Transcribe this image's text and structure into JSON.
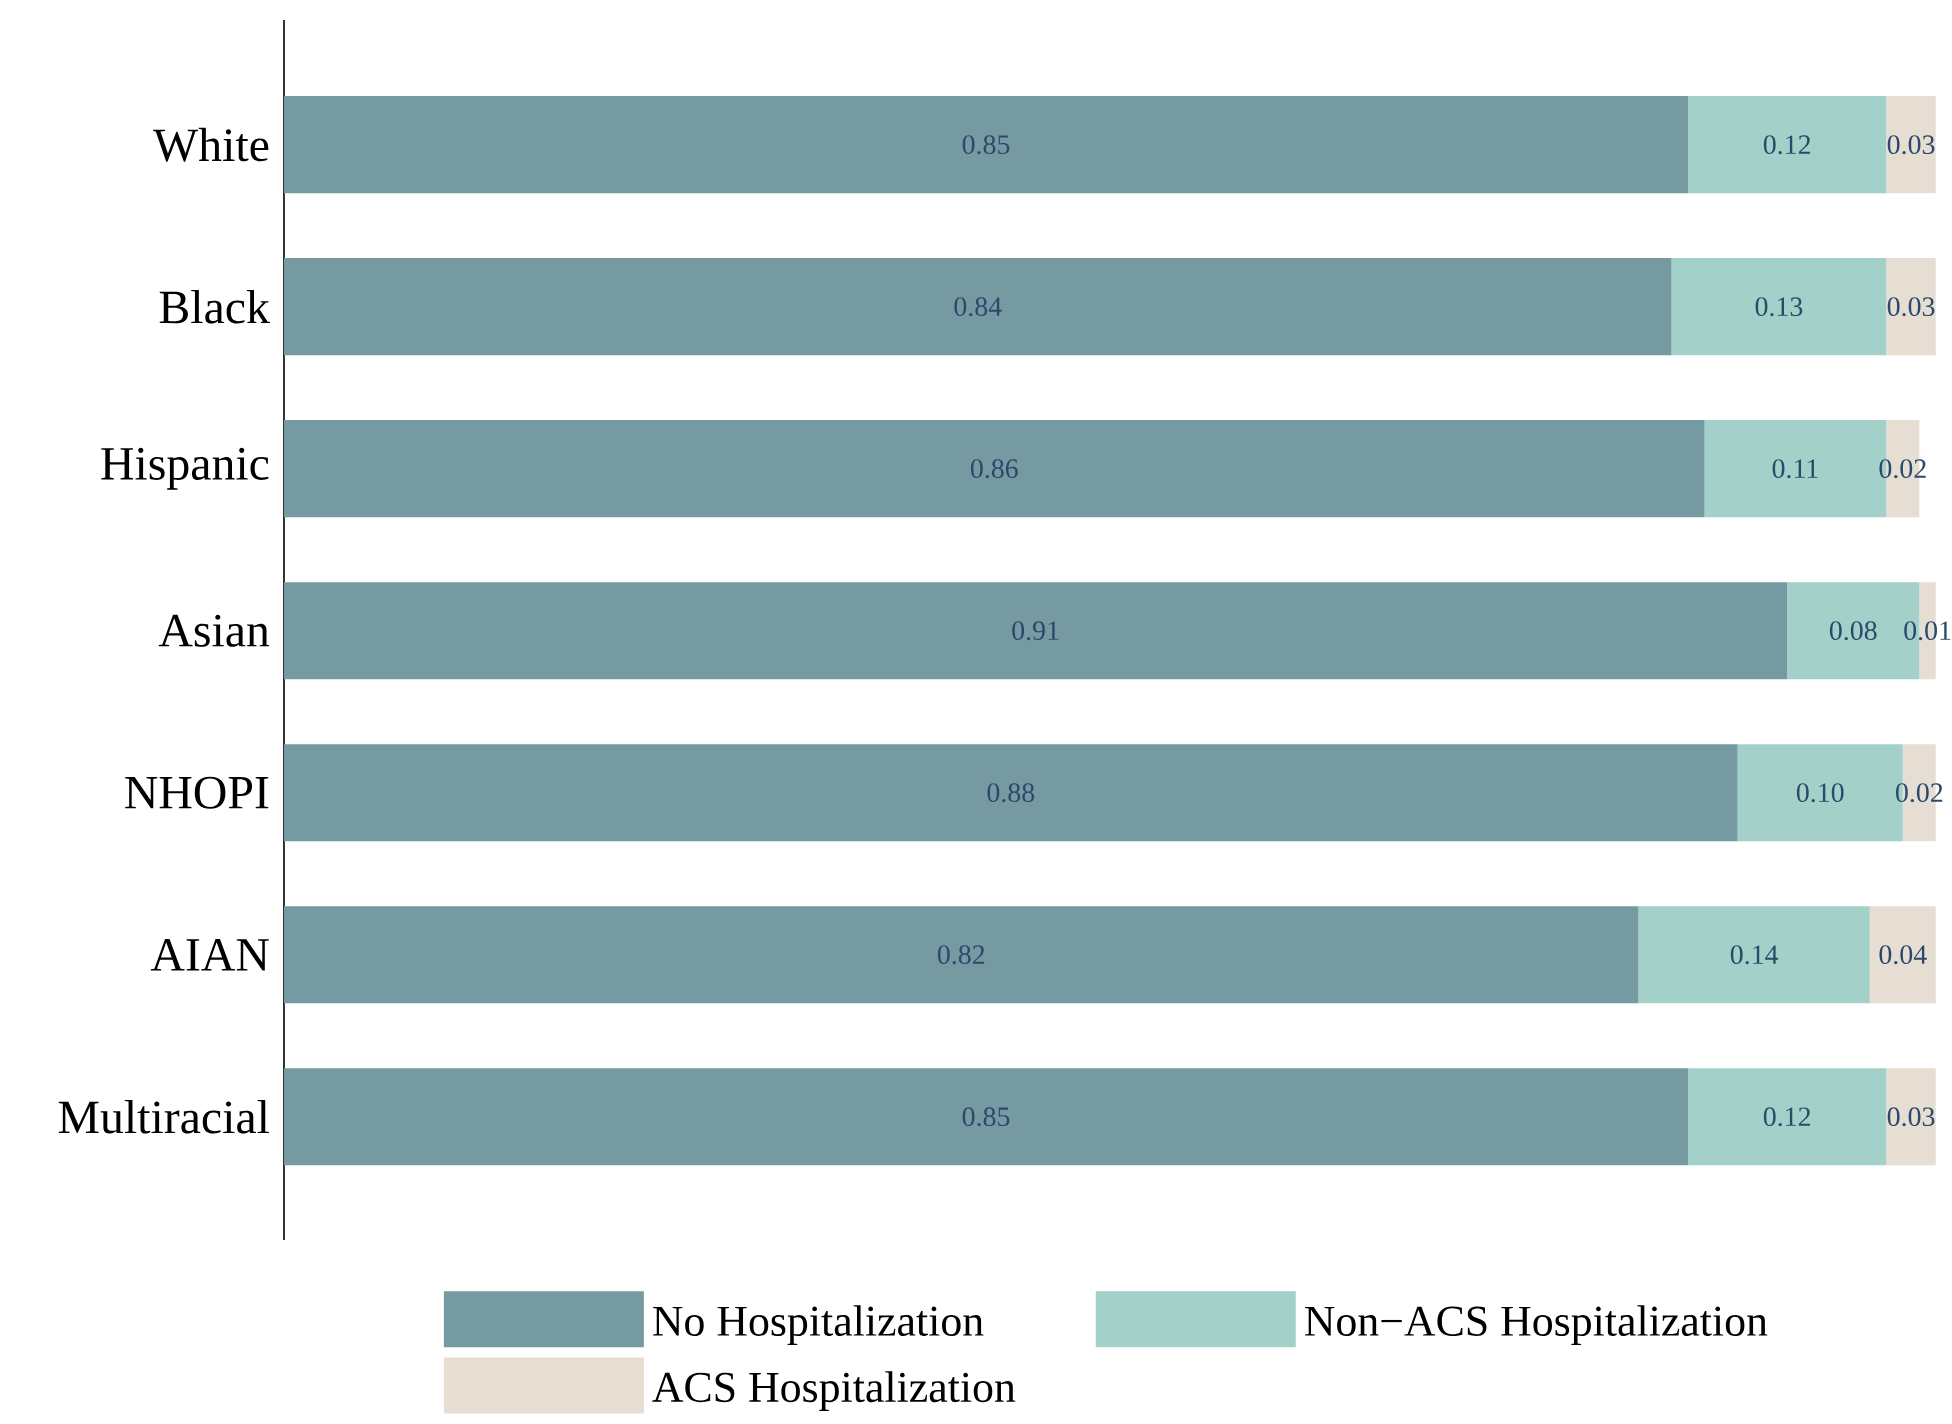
{
  "chart_data": {
    "type": "bar",
    "orientation": "horizontal",
    "stacked": true,
    "legend": "bottom",
    "categories": [
      "White",
      "Black",
      "Hispanic",
      "Asian",
      "NHOPI",
      "AIAN",
      "Multiracial"
    ],
    "series": [
      {
        "name": "No Hospitalization",
        "color": "#769aa1",
        "values": [
          0.85,
          0.84,
          0.86,
          0.91,
          0.88,
          0.82,
          0.85
        ],
        "value_labels": [
          "0.85",
          "0.84",
          "0.86",
          "0.91",
          "0.88",
          "0.82",
          "0.85"
        ]
      },
      {
        "name": "Non−ACS Hospitalization",
        "color": "#a3d1c9",
        "values": [
          0.12,
          0.13,
          0.11,
          0.08,
          0.1,
          0.14,
          0.12
        ],
        "value_labels": [
          "0.12",
          "0.13",
          "0.11",
          "0.08",
          "0.10",
          "0.14",
          "0.12"
        ]
      },
      {
        "name": "ACS Hospitalization",
        "color": "#e6ddd3",
        "values": [
          0.03,
          0.03,
          0.02,
          0.01,
          0.02,
          0.04,
          0.03
        ],
        "value_labels": [
          "0.03",
          "0.03",
          "0.02",
          "0.01",
          "0.02",
          "0.04",
          "0.03"
        ]
      }
    ]
  }
}
